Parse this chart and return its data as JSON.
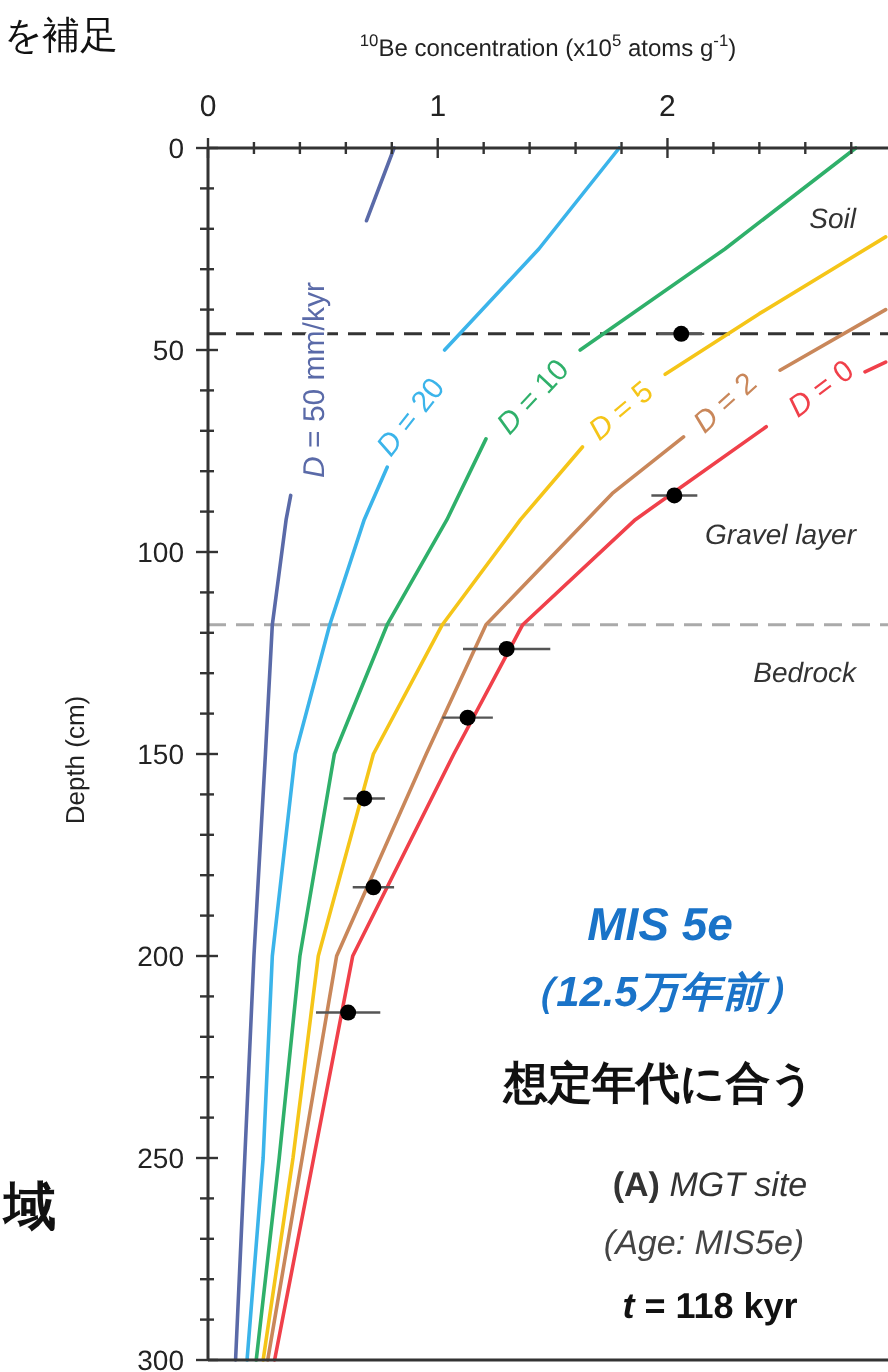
{
  "chart_data": {
    "type": "line",
    "xlabel": "$^{10}$Be concentration (x10$^{5}$ atoms g$^{-1}$)",
    "ylabel": "Depth (cm)",
    "xlim": [
      0,
      2.96
    ],
    "ylim": [
      300,
      0
    ],
    "xticks": [
      0,
      {
        "value": 0.2,
        "label": null
      },
      {
        "value": 0.4,
        "label": null
      },
      {
        "value": 0.6,
        "label": null
      },
      {
        "value": 0.8,
        "label": null
      },
      1,
      {
        "value": 1.2,
        "label": null
      },
      {
        "value": 1.4,
        "label": null
      },
      {
        "value": 1.6,
        "label": null
      },
      {
        "value": 1.8,
        "label": null
      },
      2,
      {
        "value": 2.2,
        "label": null
      },
      {
        "value": 2.4,
        "label": null
      },
      {
        "value": 2.6,
        "label": null
      },
      {
        "value": 2.8,
        "label": null
      }
    ],
    "yticks": [
      0,
      {
        "value": 10,
        "label": null
      },
      {
        "value": 20,
        "label": null
      },
      {
        "value": 30,
        "label": null
      },
      {
        "value": 40,
        "label": null
      },
      50,
      {
        "value": 60,
        "label": null
      },
      {
        "value": 70,
        "label": null
      },
      {
        "value": 80,
        "label": null
      },
      {
        "value": 90,
        "label": null
      },
      100,
      {
        "value": 110,
        "label": null
      },
      {
        "value": 120,
        "label": null
      },
      {
        "value": 130,
        "label": null
      },
      {
        "value": 140,
        "label": null
      },
      150,
      {
        "value": 160,
        "label": null
      },
      {
        "value": 170,
        "label": null
      },
      {
        "value": 180,
        "label": null
      },
      {
        "value": 190,
        "label": null
      },
      200,
      {
        "value": 210,
        "label": null
      },
      {
        "value": 220,
        "label": null
      },
      {
        "value": 230,
        "label": null
      },
      {
        "value": 240,
        "label": null
      },
      250,
      {
        "value": 260,
        "label": null
      },
      {
        "value": 270,
        "label": null
      },
      {
        "value": 280,
        "label": null
      },
      {
        "value": 290,
        "label": null
      },
      300
    ],
    "grid": false,
    "legend": false,
    "series": [
      {
        "name": "*D* = 50 mm/kyr",
        "color": "#5a6aa8",
        "x": [
          0.81,
          0.69,
          null,
          0.36,
          0.34,
          0.28,
          0.25,
          0.2,
          0.16,
          0.12
        ],
        "values": [
          0,
          18,
          null,
          86,
          92,
          118,
          150,
          200,
          250,
          300
        ]
      },
      {
        "name": "*D* = 20",
        "color": "#3bb4ea",
        "x": [
          1.79,
          1.44,
          1.03,
          null,
          0.78,
          0.68,
          0.53,
          0.38,
          0.28,
          0.24,
          0.17
        ],
        "values": [
          0,
          25,
          50,
          null,
          79,
          92,
          118,
          150,
          200,
          250,
          300
        ]
      },
      {
        "name": "*D* = 10",
        "color": "#2fb06a",
        "x": [
          2.82,
          2.25,
          1.62,
          null,
          1.21,
          1.04,
          0.78,
          0.55,
          0.4,
          0.31,
          0.21
        ],
        "values": [
          0,
          25,
          50,
          null,
          72,
          92,
          118,
          150,
          200,
          250,
          300
        ]
      },
      {
        "name": "*D* = 5",
        "color": "#f5c518",
        "x": [
          2.95,
          2.4,
          1.99,
          null,
          1.63,
          1.36,
          1.02,
          0.72,
          0.48,
          0.37,
          0.24
        ],
        "values": [
          22,
          41,
          56,
          null,
          74,
          92,
          118,
          150,
          200,
          250,
          300
        ]
      },
      {
        "name": "*D* = 2",
        "color": "#c9875a",
        "x": [
          2.95,
          2.49,
          null,
          2.07,
          1.76,
          1.65,
          1.21,
          0.95,
          0.56,
          0.41,
          0.26
        ],
        "values": [
          40,
          55,
          null,
          71.5,
          85.5,
          92,
          118,
          150,
          200,
          250,
          300
        ]
      },
      {
        "name": "*D* = 0",
        "color": "#f0404a",
        "x": [
          2.95,
          2.86,
          null,
          2.43,
          2.02,
          1.86,
          1.37,
          1.07,
          0.63,
          0.46,
          0.29
        ],
        "values": [
          53,
          55.4,
          null,
          69,
          85.5,
          92,
          118,
          150,
          200,
          250,
          300
        ]
      },
      {
        "color": "#000000",
        "type": "scatter",
        "marker": "circle",
        "x": [
          2.06,
          2.03,
          1.3,
          1.13,
          0.68,
          0.72,
          0.61
        ],
        "values": [
          46,
          86,
          124,
          141,
          161,
          183,
          214
        ],
        "xerrors": [
          0.1,
          0.1,
          0.19,
          0.11,
          0.09,
          0.09,
          0.14
        ]
      }
    ],
    "ref_lines": [
      {
        "axis": "y",
        "value": 46,
        "color": "#333333",
        "line_style": "dashed"
      },
      {
        "axis": "y",
        "value": 118,
        "color": "#aaaaaa",
        "line_style": "dashed"
      }
    ],
    "annotations": [
      "Soil",
      "Gravel layer",
      "Bedrock",
      "*MIS 5e*",
      "（12.5万年前）",
      "想定年代に合う",
      "**(A)** *MGT site*",
      "*(Age: MIS5e)*",
      "*t* = 118 kyr",
      "を補足",
      "域"
    ]
  }
}
